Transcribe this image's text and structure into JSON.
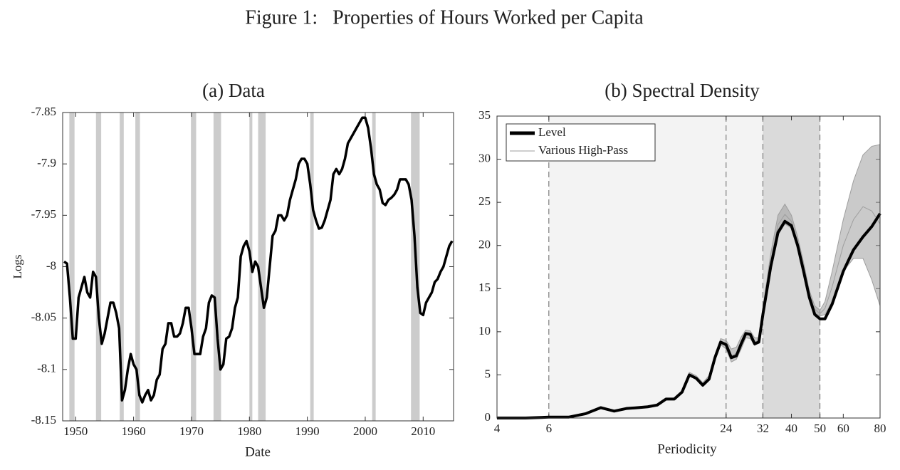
{
  "title": "Figure 1:   Properties of Hours Worked per Capita",
  "chart_data": [
    {
      "type": "line",
      "title": "(a) Data",
      "x_label": "Date",
      "y_label": "Logs",
      "color": "#000000",
      "shade_color": "#cccccc",
      "xlim": [
        1947.75,
        2015.25
      ],
      "xticks": [
        1950,
        1960,
        1970,
        1980,
        1990,
        2000,
        2010
      ],
      "ylim": [
        -8.15,
        -7.85
      ],
      "yticks": [
        -7.85,
        -7.9,
        -7.95,
        -8,
        -8.05,
        -8.1,
        -8.15
      ],
      "shaded_regions": [
        [
          1948.9,
          1949.8
        ],
        [
          1953.5,
          1954.4
        ],
        [
          1957.6,
          1958.3
        ],
        [
          1960.3,
          1961.1
        ],
        [
          1969.9,
          1970.8
        ],
        [
          1973.8,
          1975.1
        ],
        [
          1980.0,
          1980.5
        ],
        [
          1981.5,
          1982.8
        ],
        [
          1990.5,
          1991.1
        ],
        [
          2001.2,
          2001.8
        ],
        [
          2007.9,
          2009.4
        ]
      ],
      "x": [
        1948,
        1948.5,
        1949,
        1949.5,
        1950,
        1950.5,
        1951,
        1951.5,
        1952,
        1952.5,
        1953,
        1953.5,
        1954,
        1954.5,
        1955,
        1955.5,
        1956,
        1956.5,
        1957,
        1957.5,
        1958,
        1958.5,
        1959,
        1959.5,
        1960,
        1960.5,
        1961,
        1961.5,
        1962,
        1962.5,
        1963,
        1963.5,
        1964,
        1964.5,
        1965,
        1965.5,
        1966,
        1966.5,
        1967,
        1967.5,
        1968,
        1968.5,
        1969,
        1969.5,
        1970,
        1970.5,
        1971,
        1971.5,
        1972,
        1972.5,
        1973,
        1973.5,
        1974,
        1974.5,
        1975,
        1975.5,
        1976,
        1976.5,
        1977,
        1977.5,
        1978,
        1978.5,
        1979,
        1979.5,
        1980,
        1980.5,
        1981,
        1981.5,
        1982,
        1982.5,
        1983,
        1983.5,
        1984,
        1984.5,
        1985,
        1985.5,
        1986,
        1986.5,
        1987,
        1987.5,
        1988,
        1988.5,
        1989,
        1989.5,
        1990,
        1990.5,
        1991,
        1991.5,
        1992,
        1992.5,
        1993,
        1993.5,
        1994,
        1994.5,
        1995,
        1995.5,
        1996,
        1996.5,
        1997,
        1997.5,
        1998,
        1998.5,
        1999,
        1999.5,
        2000,
        2000.5,
        2001,
        2001.5,
        2002,
        2002.5,
        2003,
        2003.5,
        2004,
        2004.5,
        2005,
        2005.5,
        2006,
        2006.5,
        2007,
        2007.5,
        2008,
        2008.5,
        2009,
        2009.5,
        2010,
        2010.5,
        2011,
        2011.5,
        2012,
        2012.5,
        2013,
        2013.5,
        2014,
        2014.5,
        2015
      ],
      "values": [
        -7.995,
        -7.997,
        -8.03,
        -8.07,
        -8.07,
        -8.03,
        -8.02,
        -8.01,
        -8.025,
        -8.03,
        -8.005,
        -8.01,
        -8.05,
        -8.075,
        -8.065,
        -8.05,
        -8.035,
        -8.035,
        -8.045,
        -8.06,
        -8.13,
        -8.12,
        -8.1,
        -8.085,
        -8.095,
        -8.1,
        -8.125,
        -8.132,
        -8.125,
        -8.12,
        -8.13,
        -8.125,
        -8.11,
        -8.105,
        -8.08,
        -8.075,
        -8.055,
        -8.055,
        -8.068,
        -8.068,
        -8.065,
        -8.055,
        -8.04,
        -8.04,
        -8.06,
        -8.085,
        -8.085,
        -8.085,
        -8.068,
        -8.06,
        -8.035,
        -8.028,
        -8.03,
        -8.07,
        -8.1,
        -8.095,
        -8.07,
        -8.068,
        -8.06,
        -8.04,
        -8.03,
        -7.99,
        -7.98,
        -7.975,
        -7.985,
        -8.005,
        -7.995,
        -8.0,
        -8.02,
        -8.04,
        -8.03,
        -8.0,
        -7.97,
        -7.965,
        -7.95,
        -7.95,
        -7.955,
        -7.95,
        -7.935,
        -7.925,
        -7.915,
        -7.9,
        -7.895,
        -7.895,
        -7.9,
        -7.92,
        -7.945,
        -7.955,
        -7.963,
        -7.962,
        -7.955,
        -7.945,
        -7.935,
        -7.91,
        -7.905,
        -7.91,
        -7.905,
        -7.895,
        -7.88,
        -7.875,
        -7.87,
        -7.865,
        -7.86,
        -7.855,
        -7.855,
        -7.865,
        -7.885,
        -7.91,
        -7.92,
        -7.925,
        -7.938,
        -7.94,
        -7.935,
        -7.933,
        -7.93,
        -7.925,
        -7.915,
        -7.915,
        -7.915,
        -7.92,
        -7.935,
        -7.97,
        -8.02,
        -8.045,
        -8.047,
        -8.035,
        -8.03,
        -8.025,
        -8.015,
        -8.012,
        -8.005,
        -8.0,
        -7.99,
        -7.98,
        -7.975
      ]
    },
    {
      "type": "line",
      "title": "(b) Spectral Density",
      "x_label": "Periodicity",
      "xscale": "log",
      "xlim": [
        4,
        80
      ],
      "xticks": [
        4,
        6,
        24,
        32,
        40,
        50,
        60,
        80
      ],
      "ylim": [
        0,
        35
      ],
      "yticks": [
        0,
        5,
        10,
        15,
        20,
        25,
        30,
        35
      ],
      "legend": "upper left",
      "bands": [
        {
          "from": 6,
          "to": 32,
          "color": "#f3f3f3"
        },
        {
          "from": 32,
          "to": 50,
          "color": "#dadada"
        }
      ],
      "vlines": [
        6,
        24,
        32,
        50
      ],
      "x": [
        4,
        5,
        6,
        7,
        8,
        9,
        10,
        11,
        12,
        13,
        14,
        15,
        16,
        17,
        18,
        19,
        20,
        21,
        22,
        23,
        24,
        25,
        26,
        27,
        28,
        29,
        30,
        31,
        32,
        34,
        36,
        38,
        40,
        42,
        44,
        46,
        48,
        50,
        52,
        55,
        60,
        65,
        70,
        75,
        80
      ],
      "series": [
        {
          "name": "Various High-Pass",
          "color": "#9e9e9e",
          "lines": [
            [
              0,
              0,
              0.1,
              0.1,
              0.5,
              1.2,
              0.8,
              1.1,
              1.2,
              1.3,
              1.5,
              2.2,
              2.2,
              3.0,
              5.0,
              4.6,
              3.8,
              4.4,
              6.8,
              8.5,
              8.0,
              6.5,
              6.8,
              8.0,
              9.3,
              9.2,
              8.4,
              8.7,
              11.8,
              17.5,
              21.2,
              22.5,
              22.0,
              19.5,
              16.8,
              14,
              12.2,
              11.8,
              12.0,
              13.5,
              17,
              18.5,
              18.5,
              16,
              13
            ],
            [
              0,
              0,
              0.1,
              0.1,
              0.5,
              1.2,
              0.8,
              1.1,
              1.2,
              1.3,
              1.5,
              2.2,
              2.2,
              3.0,
              5.1,
              4.7,
              3.9,
              4.6,
              7.1,
              8.9,
              8.5,
              7.2,
              7.5,
              8.7,
              9.8,
              9.6,
              8.8,
              9.0,
              12.3,
              18,
              22.4,
              23.6,
              22.8,
              20.2,
              17.4,
              14.4,
              12.6,
              12.1,
              12.7,
              15.2,
              20,
              23,
              24.5,
              24,
              22.5
            ],
            [
              0,
              0,
              0.1,
              0.1,
              0.6,
              1.3,
              0.9,
              1.2,
              1.3,
              1.4,
              1.6,
              2.3,
              2.3,
              3.1,
              5.3,
              4.9,
              4.1,
              4.9,
              7.4,
              9.2,
              9.0,
              8.0,
              8.2,
              9.4,
              10.2,
              10.1,
              9.3,
              9.3,
              12.8,
              19,
              23.5,
              24.8,
              23.5,
              21,
              18,
              14.8,
              13,
              12.5,
              13.5,
              17,
              23,
              27.5,
              30.5,
              31.5,
              31.7
            ]
          ]
        },
        {
          "name": "Level",
          "color": "#000000",
          "values": [
            0,
            0,
            0.1,
            0.1,
            0.5,
            1.2,
            0.8,
            1.1,
            1.2,
            1.3,
            1.5,
            2.2,
            2.2,
            3.0,
            5.0,
            4.6,
            3.8,
            4.5,
            7.0,
            8.8,
            8.5,
            7.0,
            7.2,
            8.6,
            9.8,
            9.7,
            8.6,
            8.8,
            12,
            17.5,
            21.5,
            22.8,
            22.3,
            20,
            17,
            14,
            12,
            11.5,
            11.5,
            13.2,
            17,
            19.5,
            21,
            22.2,
            23.7
          ]
        }
      ]
    }
  ]
}
